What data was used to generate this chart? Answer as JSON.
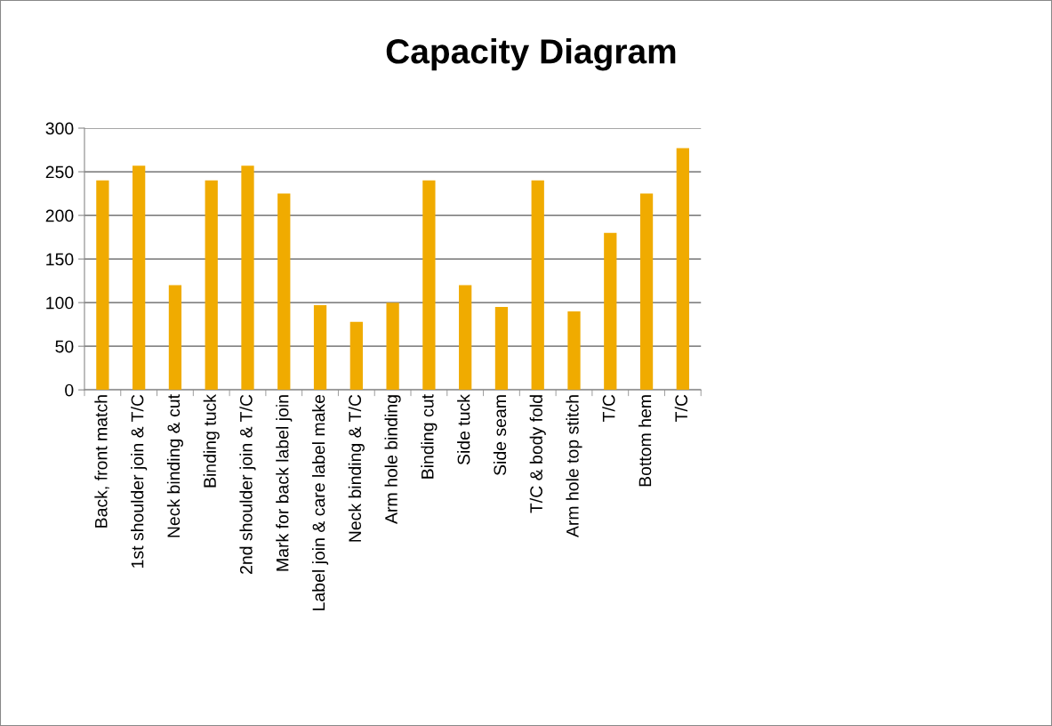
{
  "chart_data": {
    "type": "bar",
    "title": "Capacity Diagram",
    "categories": [
      "Back, front match",
      "1st shoulder join & T/C",
      "Neck binding & cut",
      "Binding tuck",
      "2nd shoulder join & T/C",
      "Mark for back label join",
      "Label join & care label make",
      "Neck binding & T/C",
      "Arm hole binding",
      "Binding cut",
      "Side tuck",
      "Side seam",
      "T/C & body fold",
      "Arm hole top stitch",
      "T/C",
      "Bottom hem",
      "T/C"
    ],
    "values": [
      240,
      257,
      120,
      240,
      257,
      225,
      97,
      78,
      100,
      240,
      120,
      95,
      240,
      90,
      180,
      225,
      277
    ],
    "color": "#f0ab00",
    "ylim": [
      0,
      300
    ],
    "yticks": [
      0,
      50,
      100,
      150,
      200,
      250,
      300
    ],
    "grid": "y",
    "legend": false
  }
}
